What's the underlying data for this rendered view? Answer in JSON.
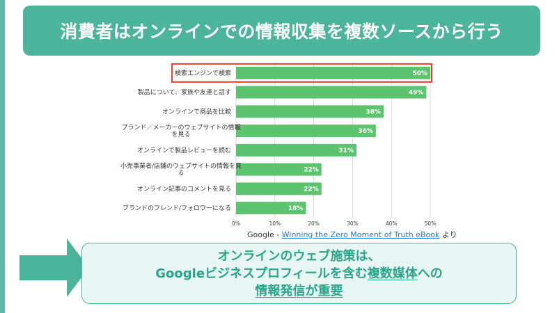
{
  "title": "消費者はオンラインでの情報収集を複数ソースから行う",
  "chart_data": {
    "type": "bar",
    "orientation": "horizontal",
    "categories": [
      [
        "検索エンジンで検索"
      ],
      [
        "製品について、家族や友達と話す"
      ],
      [
        "オンラインで商品を比較"
      ],
      [
        "ブランド／メーカーのウェブサイトの情報",
        "を見る"
      ],
      [
        "オンラインで製品レビューを読む"
      ],
      [
        "小売事業者/店舗のウェブサイトの情報を見",
        "る"
      ],
      [
        "オンライン記事のコメントを見る"
      ],
      [
        "ブランドのフレンド/フォロワーになる"
      ]
    ],
    "values": [
      50,
      49,
      38,
      36,
      31,
      22,
      22,
      18
    ],
    "value_labels": [
      "50%",
      "49%",
      "38%",
      "36%",
      "31%",
      "22%",
      "22%",
      "18%"
    ],
    "xlim": [
      0,
      50
    ],
    "x_ticks": [
      "0%",
      "10%",
      "20%",
      "30%",
      "40%",
      "50%"
    ],
    "grid": true,
    "highlighted_category_index": 0,
    "colors": {
      "bar": "#5cc46f",
      "highlight": "#e8402a",
      "grid": "#cfcfcf"
    }
  },
  "source": {
    "prefix": "Google - ",
    "link": "Winning the Zero Moment of Truth eBook",
    "suffix": " より"
  },
  "message": {
    "line1": "オンラインのウェブ施策は、",
    "line2_a": "Googleビジネスプロフィールを含む",
    "line2_b": "複数媒体",
    "line2_c": "への",
    "line3": "情報発信が重要"
  },
  "colors": {
    "accent": "#4bb49a",
    "text_accent": "#2aa58a",
    "panel": "#e7f6f2"
  }
}
